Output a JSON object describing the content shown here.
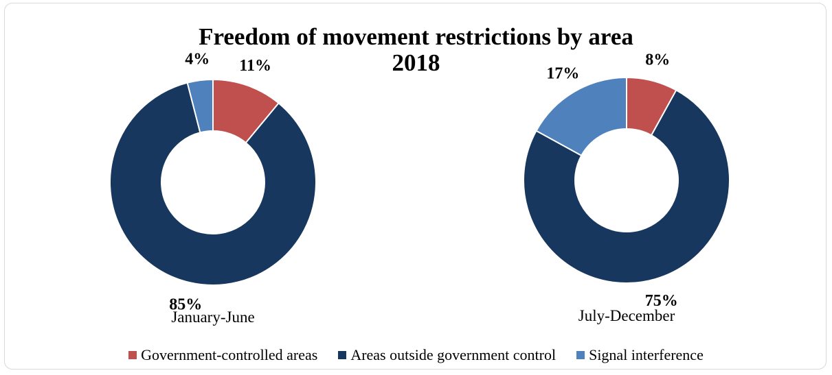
{
  "chart_data": {
    "type": "pie",
    "title_line1": "Freedom of movement restrictions by area",
    "title_line2": "2018",
    "legend_position": "bottom",
    "series_names": [
      "Government-controlled areas",
      "Areas outside government control",
      "Signal interference"
    ],
    "colors": [
      "#c0504d",
      "#17375e",
      "#4f81bd"
    ],
    "charts": [
      {
        "label": "January-June",
        "values": [
          11,
          85,
          4
        ],
        "value_labels": [
          "11%",
          "85%",
          "4%"
        ]
      },
      {
        "label": "July-December",
        "values": [
          8,
          75,
          17
        ],
        "value_labels": [
          "8%",
          "75%",
          "17%"
        ]
      }
    ]
  }
}
